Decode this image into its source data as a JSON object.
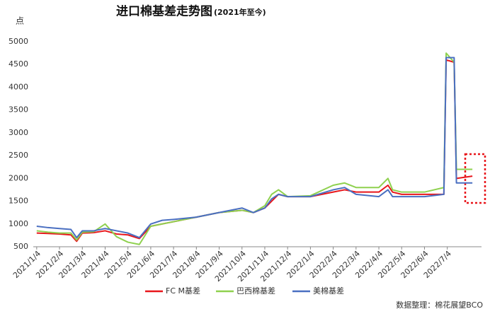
{
  "chart_data": {
    "type": "line",
    "title": "进口棉基差走势图",
    "subtitle": "(2021年至今)",
    "y_label": "点",
    "source": "数据整理：棉花展望BCO",
    "x": [
      0,
      0.5,
      1,
      1.5,
      1.75,
      2,
      2.5,
      3,
      3.5,
      4,
      4.5,
      5,
      5.5,
      6,
      7,
      8,
      9,
      9.5,
      10,
      10.3,
      10.6,
      11,
      12,
      13,
      13.5,
      14,
      15,
      15.4,
      15.6,
      16,
      17,
      17.85,
      17.95,
      18.3,
      18.4,
      19.1
    ],
    "series": [
      {
        "name": "FC M基差",
        "color": "#e8161b",
        "values": [
          800,
          790,
          780,
          760,
          620,
          800,
          810,
          850,
          780,
          760,
          680,
          950,
          1000,
          1050,
          1150,
          1250,
          1300,
          1250,
          1350,
          1500,
          1650,
          1600,
          1600,
          1700,
          1750,
          1700,
          1700,
          1850,
          1700,
          1650,
          1650,
          1650,
          4600,
          4550,
          2000,
          2050
        ]
      },
      {
        "name": "巴西棉基差",
        "color": "#8fd14f",
        "values": [
          850,
          820,
          800,
          800,
          650,
          820,
          830,
          1000,
          720,
          600,
          550,
          950,
          1000,
          1050,
          1150,
          1250,
          1300,
          1250,
          1400,
          1650,
          1750,
          1600,
          1620,
          1850,
          1900,
          1800,
          1800,
          2000,
          1750,
          1700,
          1700,
          1800,
          4750,
          4550,
          2200,
          2200
        ]
      },
      {
        "name": "美棉基差",
        "color": "#4a6fc1",
        "values": [
          950,
          920,
          900,
          880,
          700,
          850,
          850,
          900,
          850,
          800,
          700,
          1000,
          1080,
          1100,
          1150,
          1250,
          1350,
          1250,
          1350,
          1550,
          1650,
          1600,
          1600,
          1750,
          1800,
          1650,
          1600,
          1750,
          1600,
          1600,
          1600,
          1650,
          4650,
          4650,
          1900,
          1900
        ]
      }
    ],
    "xlim": [
      -0.15,
      19.5
    ],
    "xticks": [
      {
        "value": 0,
        "label": "2021/1/4"
      },
      {
        "value": 1,
        "label": "2021/2/4"
      },
      {
        "value": 2,
        "label": "2021/3/4"
      },
      {
        "value": 3,
        "label": "2021/4/4"
      },
      {
        "value": 4,
        "label": "2021/5/4"
      },
      {
        "value": 5,
        "label": "2021/6/4"
      },
      {
        "value": 6,
        "label": "2021/7/4"
      },
      {
        "value": 7,
        "label": "2021/8/4"
      },
      {
        "value": 8,
        "label": "2021/9/4"
      },
      {
        "value": 9,
        "label": "2021/10/4"
      },
      {
        "value": 10,
        "label": "2021/11/4"
      },
      {
        "value": 11,
        "label": "2021/12/4"
      },
      {
        "value": 12,
        "label": "2022/1/4"
      },
      {
        "value": 13,
        "label": "2022/2/4"
      },
      {
        "value": 14,
        "label": "2022/3/4"
      },
      {
        "value": 15,
        "label": "2022/4/4"
      },
      {
        "value": 16,
        "label": "2022/5/4"
      },
      {
        "value": 17,
        "label": "2022/6/4"
      },
      {
        "value": 18,
        "label": "2022/7/4"
      }
    ],
    "ylim": [
      500,
      5000
    ],
    "yticks": [
      500,
      1000,
      1500,
      2000,
      2500,
      3000,
      3500,
      4000,
      4500,
      5000
    ],
    "grid": false,
    "legend": "bottom"
  }
}
